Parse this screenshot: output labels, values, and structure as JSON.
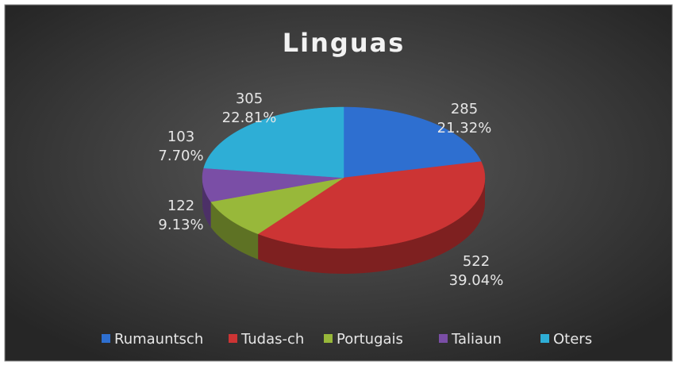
{
  "chart_data": {
    "type": "pie3d",
    "title": "Linguas",
    "categories": [
      "Rumauntsch",
      "Tudas-ch",
      "Portugais",
      "Taliaun",
      "Oters"
    ],
    "values": [
      285,
      522,
      122,
      103,
      305
    ],
    "percent_labels": [
      "21.32%",
      "39.04%",
      "9.13%",
      "7.70%",
      "22.81%"
    ],
    "colors": [
      "#2e6fd0",
      "#cc3434",
      "#98b83a",
      "#7a4ea6",
      "#2eaed6"
    ],
    "legend": "bottom"
  }
}
